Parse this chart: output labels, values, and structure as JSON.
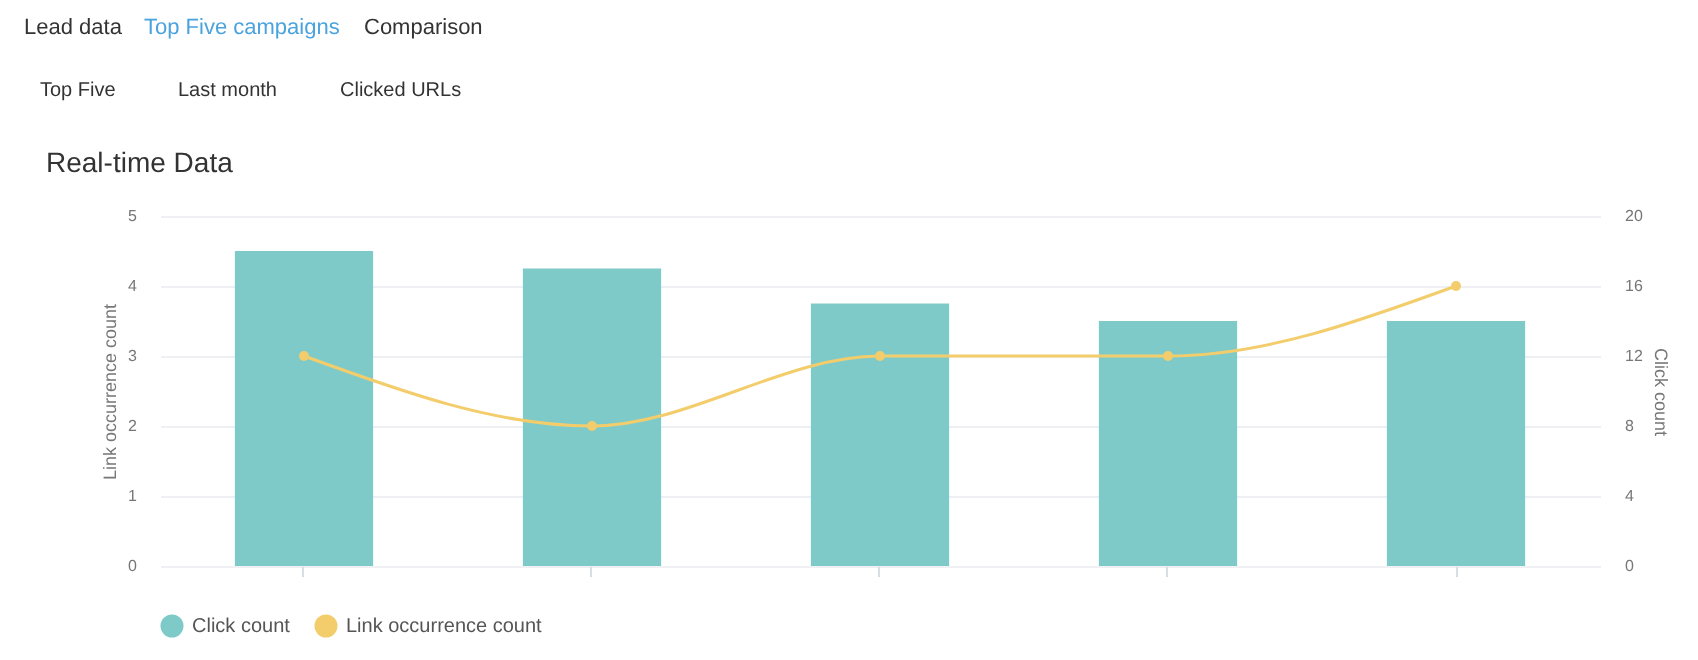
{
  "chart_data": {
    "type": "bar",
    "title": "Real-time Data",
    "annotations": [
      "Lead data",
      "Top Five campaigns",
      "Comparison",
      "Top Five",
      "Last month",
      "Clicked URLs"
    ],
    "categories": [
      null,
      null,
      null,
      null,
      null
    ],
    "series": [
      {
        "name": "Click count",
        "axis": "y2",
        "color": "#7ecac9",
        "values": [
          18,
          17,
          15,
          14,
          14
        ]
      },
      {
        "name": "Link occurrence count",
        "type": "line",
        "color": "#f3cd6b",
        "values": [
          3,
          2,
          3,
          3,
          4
        ]
      }
    ],
    "ylabel": "Link occurrence count",
    "y2label": "Click count",
    "ylim": [
      0,
      5
    ],
    "yticks": [
      0,
      1,
      2,
      3,
      4,
      5
    ],
    "y2lim": [
      0,
      20
    ],
    "y2ticks": [
      0,
      4,
      8,
      12,
      16,
      20
    ],
    "grid": "y",
    "legend": "bottom",
    "marker": "circle"
  }
}
